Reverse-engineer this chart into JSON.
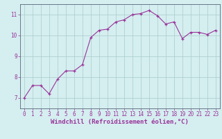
{
  "x": [
    0,
    1,
    2,
    3,
    4,
    5,
    6,
    7,
    8,
    9,
    10,
    11,
    12,
    13,
    14,
    15,
    16,
    17,
    18,
    19,
    20,
    21,
    22,
    23
  ],
  "y": [
    7.0,
    7.6,
    7.6,
    7.2,
    7.9,
    8.3,
    8.3,
    8.6,
    9.9,
    10.25,
    10.3,
    10.65,
    10.75,
    11.0,
    11.05,
    11.2,
    10.95,
    10.55,
    10.65,
    9.85,
    10.15,
    10.15,
    10.05,
    10.25
  ],
  "line_color": "#993399",
  "marker": "+",
  "marker_size": 3,
  "bg_color": "#d5eef0",
  "grid_color": "#aacccc",
  "xlabel": "Windchill (Refroidissement éolien,°C)",
  "xlabel_color": "#993399",
  "tick_color": "#993399",
  "ylim": [
    6.5,
    11.5
  ],
  "xlim": [
    -0.5,
    23.5
  ],
  "yticks": [
    7,
    8,
    9,
    10,
    11
  ],
  "xticks": [
    0,
    1,
    2,
    3,
    4,
    5,
    6,
    7,
    8,
    9,
    10,
    11,
    12,
    13,
    14,
    15,
    16,
    17,
    18,
    19,
    20,
    21,
    22,
    23
  ],
  "spine_color": "#556677",
  "tick_labelsize": 5.5,
  "xlabel_fontsize": 6.5,
  "linewidth": 0.8
}
